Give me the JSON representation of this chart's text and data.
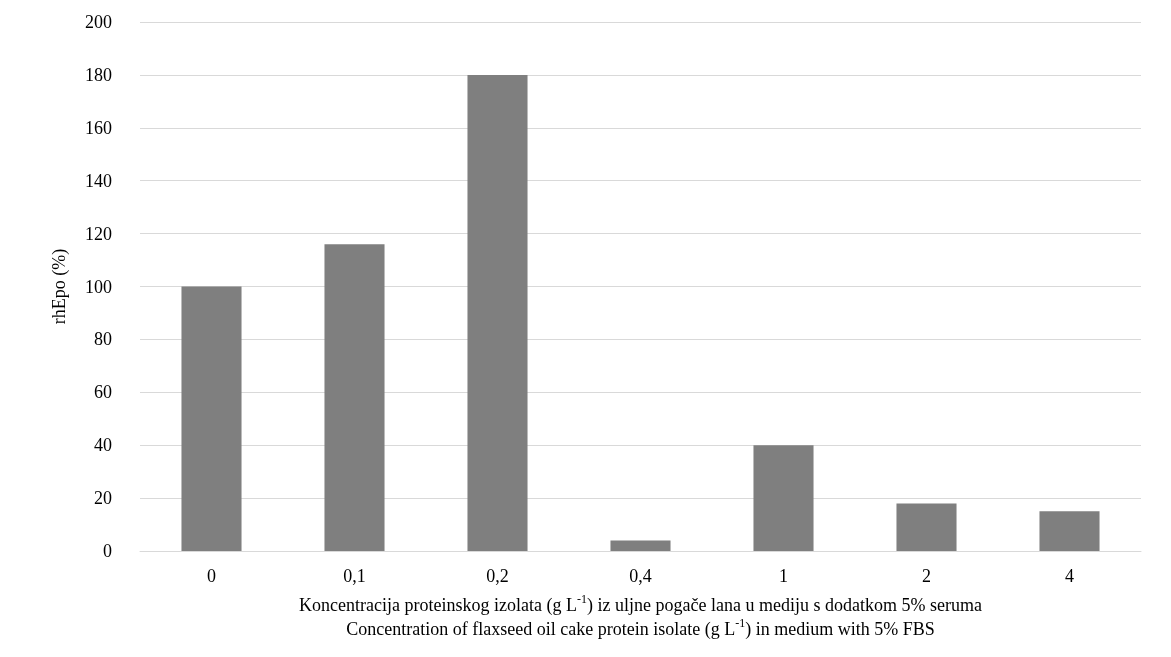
{
  "chart_data": {
    "type": "bar",
    "categories": [
      "0",
      "0,1",
      "0,2",
      "0,4",
      "1",
      "2",
      "4"
    ],
    "values": [
      100,
      116,
      180,
      4,
      40,
      18,
      15
    ],
    "color": "#7f7f7f",
    "ylabel": "rhEpo (%)",
    "xlabel": "Koncentracija proteinskog izolata (g L$^{-1}$) iz uljne pogače lana u mediju s dodatkom 5% seruma\nConcentration of flaxseed oil cake protein isolate (g L$^{-1}$) in medium with 5% FBS",
    "ylim": [
      0,
      200
    ],
    "yticks": [
      0,
      20,
      40,
      60,
      80,
      100,
      120,
      140,
      160,
      180,
      200
    ],
    "grid": "y"
  }
}
